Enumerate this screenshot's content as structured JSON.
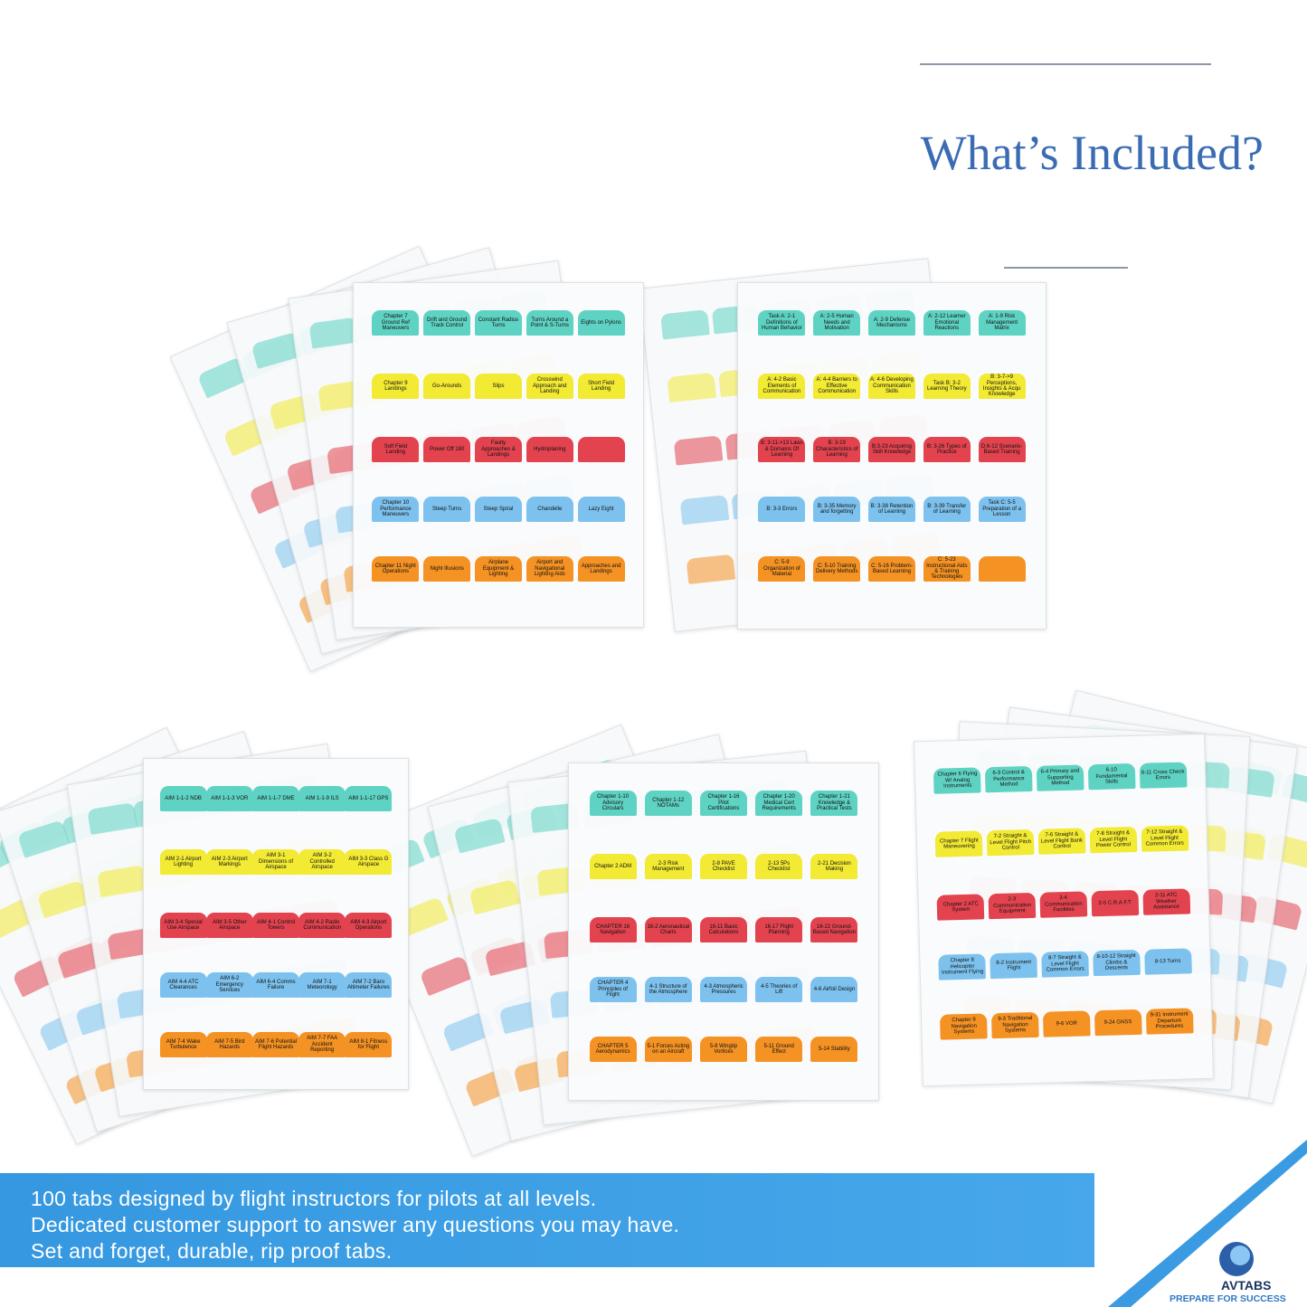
{
  "header": {
    "title": "What’s Included?"
  },
  "sheets": [
    {
      "rows": [
        [
          "Chapter 7 Ground Ref Maneuvers",
          "Drift and Ground Track Control",
          "Constant Radius Turns",
          "Turns Around a Point & S-Turns",
          "Eights on Pylons"
        ],
        [
          "Chapter 9 Landings",
          "Go-Arounds",
          "Slips",
          "Crosswind Approach and Landing",
          "Short Field Landing"
        ],
        [
          "Soft Field Landing",
          "Power Off 180",
          "Faulty Approaches & Landings",
          "Hydroplaning"
        ],
        [
          "Chapter 10 Performance Maneuvers",
          "Steep Turns",
          "Steep Spiral",
          "Chandelle",
          "Lazy Eight"
        ],
        [
          "Chapter 11 Night Operations",
          "Night Illusions",
          "Airplane Equipment & Lighting",
          "Airport and Navigational Lighting Aids",
          "Approaches and Landings"
        ]
      ]
    },
    {
      "rows": [
        [
          "Task A: 2-1 Definitions of Human Behavior",
          "A: 2-5 Human Needs and Motivation",
          "A: 2-9 Defense Mechanisms",
          "A: 2-12 Learner Emotional Reactions",
          "A: 1-9 Risk Management Matrix"
        ],
        [
          "A: 4-2 Basic Elements of Communication",
          "A: 4-4 Barriers to Effective Communication",
          "A: 4-6 Developing Communication Skills",
          "Task B: 3-2 Learning Theory",
          "B: 3-7->9 Perceptions, Insights & Acqu Knowledge"
        ],
        [
          "B: 3-11->13 Laws & Domains Of Learning",
          "B: 3-19 Characteristics of Learning",
          "B:3-23 Acquiring Skill Knowledge",
          "B: 3-26 Types of Practice",
          "D:6-12 Scenario-Based Training"
        ],
        [
          "B: 3-3 Errors",
          "B: 3-35 Memory and forgetting",
          "B: 3-38 Retention of Learning",
          "B: 3-39 Transfer of Learning",
          "Task C: 5-5 Preparation of a Lesson"
        ],
        [
          "C: 5-9 Organization of Material",
          "C: 5-10 Training Delivery Methods",
          "C: 5-16 Problem-Based Learning",
          "C: 5-23 Instructional Aids & Training Technologies"
        ]
      ]
    },
    {
      "rows": [
        [
          "AIM 1-1-2 NDB",
          "AIM 1-1-3 VOR",
          "AIM 1-1-7 DME",
          "AIM 1-1-9 ILS",
          "AIM 1-1-17 GPS"
        ],
        [
          "AIM 2-1 Airport Lighting",
          "AIM 2-3 Airport Markings",
          "AIM 3-1 Dimensions of Airspace",
          "AIM 3-2 Controlled Airspace",
          "AIM 3-3 Class G Airspace"
        ],
        [
          "AIM 3-4 Special Use Airspace",
          "AIM 3-5 Other Airspace",
          "AIM 4-1 Control Towers",
          "AIM 4-2 Radio Communication",
          "AIM 4-3 Airport Operations"
        ],
        [
          "AIM 4-4 ATC Clearances",
          "AIM 6-2 Emergency Services",
          "AIM 6-4 Comms Failure",
          "AIM 7-1 Meteorology",
          "AIM 7-2 Baro Altimeter Failures"
        ],
        [
          "AIM 7-4 Wake Turbulence",
          "AIM 7-5 Bird Hazards",
          "AIM 7-6 Potential Flight Hazards",
          "AIM 7-7 FAA Accident Reporting",
          "AIM 8-1 Fitness for Flight"
        ]
      ]
    },
    {
      "rows": [
        [
          "Chapter 1-10 Advisory Circulars",
          "Chapter 1-12 NOTAMs",
          "Chapter 1-16 Pilot Certifications",
          "Chapter 1-20 Medical Cert Requirements",
          "Chapter 1-21 Knowledge & Practical Tests"
        ],
        [
          "Chapter 2 ADM",
          "2-3 Risk Management",
          "2-8 PAVE Checklist",
          "2-13 5Ps Checklist",
          "2-21 Decision Making"
        ],
        [
          "CHAPTER 16 Navigation",
          "16-2 Aeronautical Charts",
          "16-11 Basic Calculations",
          "16-17 Flight Planning",
          "16-22 Ground-Based Navigation"
        ],
        [
          "CHAPTER 4 Principles of Flight",
          "4-1 Structure of the Atmosphere",
          "4-3 Atmospheric Pressures",
          "4-5 Theories of Lift",
          "4-6 Airfoil Design"
        ],
        [
          "CHAPTER 5 Aerodynamics",
          "5-1 Forces Acting on an Aircraft",
          "5-8 Wingtip Vortices",
          "5-11 Ground Effect",
          "5-14 Stability"
        ]
      ]
    },
    {
      "rows": [
        [
          "Chapter 6 Flying W/ Analog Instruments",
          "6-3 Control & Performance Method",
          "6-4 Primary and Supporting Method",
          "6-10 Fundamental Skills",
          "6-11 Cross Check Errors"
        ],
        [
          "Chapter 7 Flight Maneuvering",
          "7-2 Straight & Level Flight Pitch Control",
          "7-6 Straight & Level Flight Bank Control",
          "7-8 Straight & Level Flight Power Control",
          "7-12 Straight & Level Flight Common Errors"
        ],
        [
          "Chapter 2 ATC System",
          "2-3 Communication Equipment",
          "2-4 Communication Facilities",
          "2-5 C.R.A.F.T",
          "2-11 ATC Weather Assistance"
        ],
        [
          "Chapter 8 Helicopter Instrument Flying",
          "8-2 Instrument Flight",
          "8-7 Straight & Level Flight Common Errors",
          "8-10-12 Straight Climbs & Descents",
          "8-13 Turns"
        ],
        [
          "Chapter 9 Navigation Systems",
          "9-3 Traditional Navigation Systems",
          "9-6 VOR",
          "9-24 GNSS",
          "9-31 Instrument Departure Procedures"
        ]
      ]
    }
  ],
  "banner": {
    "lines": [
      "100 tabs designed by flight instructors for pilots at all levels.",
      "Dedicated customer support to answer any questions you may have.",
      "Set and forget, durable, rip proof tabs."
    ]
  },
  "logo": {
    "name": "AVTABS",
    "tagline": "PREPARE FOR SUCCESS"
  }
}
